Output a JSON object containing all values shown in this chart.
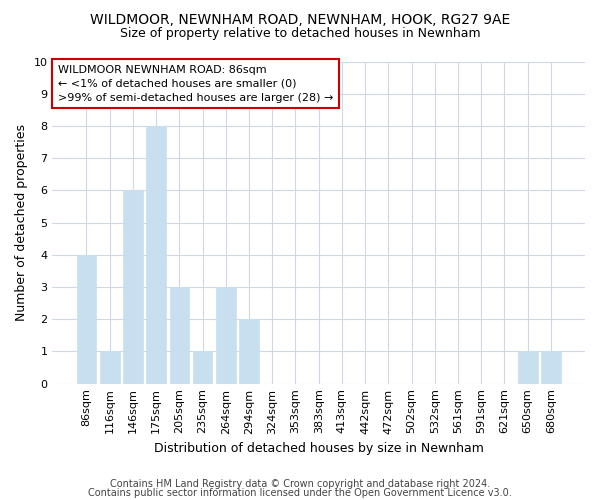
{
  "title1": "WILDMOOR, NEWNHAM ROAD, NEWNHAM, HOOK, RG27 9AE",
  "title2": "Size of property relative to detached houses in Newnham",
  "xlabel": "Distribution of detached houses by size in Newnham",
  "ylabel": "Number of detached properties",
  "bar_color": "#c8dff0",
  "bar_edge_color": "#c8dff0",
  "categories": [
    "86sqm",
    "116sqm",
    "146sqm",
    "175sqm",
    "205sqm",
    "235sqm",
    "264sqm",
    "294sqm",
    "324sqm",
    "353sqm",
    "383sqm",
    "413sqm",
    "442sqm",
    "472sqm",
    "502sqm",
    "532sqm",
    "561sqm",
    "591sqm",
    "621sqm",
    "650sqm",
    "680sqm"
  ],
  "values": [
    4,
    1,
    6,
    8,
    3,
    1,
    3,
    2,
    0,
    0,
    0,
    0,
    0,
    0,
    0,
    0,
    0,
    0,
    0,
    1,
    1
  ],
  "ylim": [
    0,
    10
  ],
  "yticks": [
    0,
    1,
    2,
    3,
    4,
    5,
    6,
    7,
    8,
    9,
    10
  ],
  "annotation_lines": [
    "WILDMOOR NEWNHAM ROAD: 86sqm",
    "← <1% of detached houses are smaller (0)",
    ">99% of semi-detached houses are larger (28) →"
  ],
  "footer1": "Contains HM Land Registry data © Crown copyright and database right 2024.",
  "footer2": "Contains public sector information licensed under the Open Government Licence v3.0.",
  "background_color": "#ffffff",
  "grid_color": "#d0d8e8",
  "annotation_box_color": "#ffffff",
  "annotation_box_edge_color": "#cc0000",
  "annotation_text_color": "#000000",
  "title1_fontsize": 10,
  "title2_fontsize": 9,
  "ylabel_fontsize": 9,
  "xlabel_fontsize": 9,
  "tick_fontsize": 8,
  "footer_fontsize": 7
}
